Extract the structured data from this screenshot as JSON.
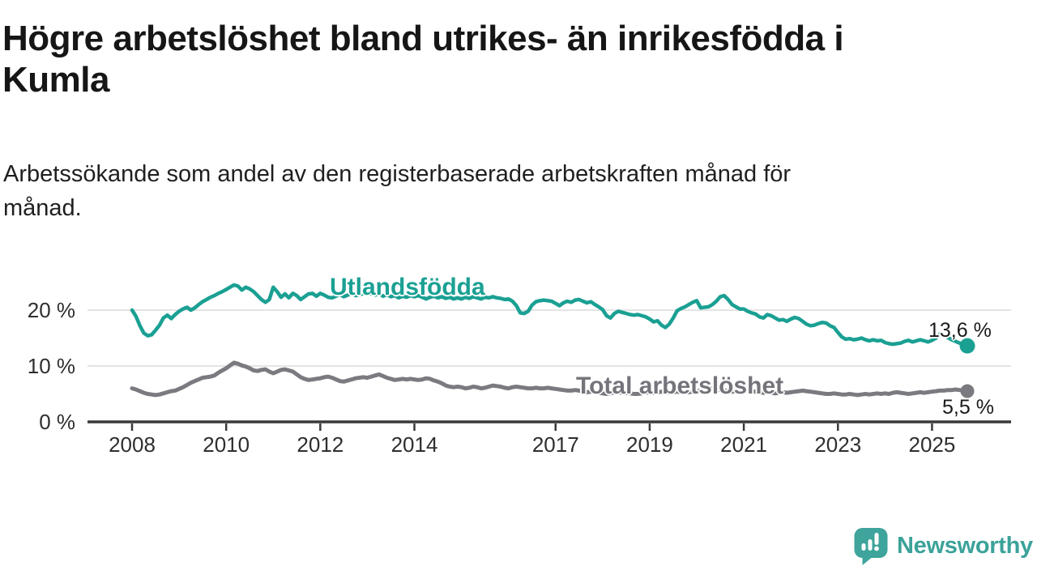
{
  "header": {
    "title_lines": [
      "Högre arbetslöshet bland utrikes- än inrikesfödda i",
      "Kumla"
    ],
    "subtitle_lines": [
      "Arbetssökande som andel av den registerbaserade arbetskraften månad för",
      "månad."
    ]
  },
  "chart_data": {
    "type": "line",
    "title": "Högre arbetslöshet bland utrikes- än inrikesfödda i Kumla",
    "subtitle": "Arbetssökande som andel av den registerbaserade arbetskraften månad för månad.",
    "x_unit": "month",
    "x_start": "2008-01",
    "x_end": "2025-10",
    "ylim": [
      0,
      26
    ],
    "grid": "horizontal",
    "y_ticks": [
      {
        "value": 0,
        "label": "0 %"
      },
      {
        "value": 10,
        "label": "10 %"
      },
      {
        "value": 20,
        "label": "20 %"
      }
    ],
    "x_ticks": [
      {
        "year": 2008,
        "label": "2008"
      },
      {
        "year": 2010,
        "label": "2010"
      },
      {
        "year": 2012,
        "label": "2012"
      },
      {
        "year": 2014,
        "label": "2014"
      },
      {
        "year": 2017,
        "label": "2017"
      },
      {
        "year": 2019,
        "label": "2019"
      },
      {
        "year": 2021,
        "label": "2021"
      },
      {
        "year": 2023,
        "label": "2023"
      },
      {
        "year": 2025,
        "label": "2025"
      }
    ],
    "series": [
      {
        "name": "Utlandsfödda",
        "color": "#1AA093",
        "end_label": "13,6 %",
        "end_value": 13.6,
        "values": [
          20.0,
          18.9,
          17.2,
          15.9,
          15.4,
          15.6,
          16.4,
          17.3,
          18.6,
          19.1,
          18.5,
          19.2,
          19.8,
          20.2,
          20.5,
          20.0,
          20.4,
          21.0,
          21.5,
          21.9,
          22.3,
          22.6,
          23.0,
          23.3,
          23.7,
          24.1,
          24.5,
          24.3,
          23.6,
          24.1,
          23.8,
          23.3,
          22.6,
          21.9,
          21.4,
          21.9,
          24.1,
          23.3,
          22.3,
          22.9,
          22.2,
          23.0,
          22.6,
          21.9,
          22.4,
          22.9,
          23.0,
          22.5,
          23.0,
          22.7,
          22.3,
          22.2,
          22.5,
          22.8,
          22.4,
          22.7,
          23.0,
          22.6,
          22.8,
          23.0,
          23.2,
          22.9,
          22.7,
          23.0,
          22.5,
          22.8,
          22.4,
          22.6,
          22.2,
          22.5,
          22.3,
          22.6,
          22.4,
          22.6,
          22.3,
          22.0,
          22.3,
          22.5,
          22.2,
          22.4,
          22.1,
          22.3,
          22.0,
          22.2,
          22.0,
          22.3,
          22.1,
          22.4,
          22.2,
          22.0,
          22.3,
          22.2,
          22.4,
          22.2,
          22.1,
          21.9,
          22.0,
          21.6,
          20.8,
          19.5,
          19.4,
          19.8,
          20.9,
          21.5,
          21.7,
          21.8,
          21.7,
          21.6,
          21.2,
          20.8,
          21.3,
          21.6,
          21.4,
          21.8,
          21.9,
          21.6,
          21.3,
          21.5,
          21.0,
          20.6,
          20.1,
          19.0,
          18.6,
          19.4,
          19.8,
          19.6,
          19.4,
          19.2,
          19.1,
          19.2,
          19.0,
          18.8,
          18.4,
          17.9,
          18.1,
          17.3,
          16.9,
          17.5,
          18.6,
          19.9,
          20.3,
          20.6,
          21.0,
          21.4,
          21.7,
          20.4,
          20.5,
          20.6,
          21.0,
          21.6,
          22.4,
          22.6,
          21.9,
          21.0,
          20.6,
          20.2,
          20.2,
          19.8,
          19.5,
          19.3,
          18.8,
          18.6,
          19.2,
          19.0,
          18.6,
          18.2,
          18.3,
          18.0,
          18.4,
          18.7,
          18.5,
          18.0,
          17.5,
          17.2,
          17.3,
          17.6,
          17.8,
          17.7,
          17.2,
          16.9,
          16.0,
          15.2,
          14.8,
          14.9,
          14.7,
          14.8,
          15.0,
          14.7,
          14.5,
          14.7,
          14.5,
          14.6,
          14.2,
          14.0,
          13.9,
          14.0,
          14.1,
          14.4,
          14.6,
          14.3,
          14.5,
          14.7,
          14.5,
          14.3,
          14.6,
          15.0,
          15.7,
          15.4,
          15.1,
          14.7,
          14.4,
          14.1,
          13.9,
          13.6
        ]
      },
      {
        "name": "Total arbetslöshet",
        "color": "#7A7A80",
        "end_label": "5,5 %",
        "end_value": 5.5,
        "values": [
          6.0,
          5.8,
          5.5,
          5.2,
          5.0,
          4.9,
          4.8,
          4.9,
          5.1,
          5.3,
          5.5,
          5.6,
          5.9,
          6.2,
          6.6,
          7.0,
          7.3,
          7.6,
          7.9,
          8.0,
          8.1,
          8.3,
          8.8,
          9.2,
          9.6,
          10.1,
          10.6,
          10.4,
          10.1,
          9.9,
          9.6,
          9.2,
          9.1,
          9.3,
          9.4,
          9.0,
          8.7,
          9.0,
          9.3,
          9.4,
          9.2,
          9.0,
          8.5,
          8.0,
          7.7,
          7.5,
          7.6,
          7.7,
          7.8,
          8.0,
          8.1,
          7.9,
          7.6,
          7.3,
          7.2,
          7.4,
          7.6,
          7.8,
          7.9,
          8.0,
          7.9,
          8.1,
          8.3,
          8.5,
          8.2,
          7.9,
          7.7,
          7.5,
          7.6,
          7.7,
          7.6,
          7.7,
          7.6,
          7.5,
          7.6,
          7.8,
          7.7,
          7.4,
          7.2,
          6.9,
          6.5,
          6.3,
          6.2,
          6.3,
          6.2,
          6.0,
          6.1,
          6.3,
          6.2,
          6.0,
          6.1,
          6.3,
          6.5,
          6.4,
          6.3,
          6.1,
          6.0,
          6.2,
          6.3,
          6.2,
          6.1,
          6.0,
          6.0,
          6.1,
          6.0,
          6.0,
          6.1,
          6.0,
          5.9,
          5.8,
          5.7,
          5.6,
          5.6,
          5.7,
          5.6,
          5.4,
          5.3,
          5.4,
          5.3,
          5.2,
          5.1,
          5.0,
          5.1,
          5.3,
          5.2,
          5.3,
          5.2,
          5.1,
          5.0,
          5.0,
          5.1,
          5.2,
          5.3,
          5.2,
          5.3,
          5.4,
          5.3,
          5.2,
          5.3,
          5.4,
          5.3,
          5.2,
          5.3,
          5.4,
          5.5,
          5.6,
          5.8,
          6.0,
          5.9,
          5.8,
          5.7,
          5.6,
          5.5,
          5.4,
          5.5,
          5.6,
          5.7,
          5.6,
          5.5,
          5.4,
          5.3,
          5.2,
          5.3,
          5.2,
          5.1,
          5.2,
          5.3,
          5.2,
          5.3,
          5.4,
          5.5,
          5.6,
          5.5,
          5.4,
          5.3,
          5.2,
          5.1,
          5.0,
          5.0,
          5.1,
          5.0,
          4.9,
          4.9,
          5.0,
          4.9,
          4.8,
          4.9,
          5.0,
          4.9,
          5.0,
          5.1,
          5.0,
          5.1,
          5.0,
          5.2,
          5.3,
          5.2,
          5.1,
          5.0,
          5.1,
          5.2,
          5.3,
          5.2,
          5.3,
          5.4,
          5.5,
          5.6,
          5.6,
          5.7,
          5.7,
          5.8,
          5.7,
          5.6,
          5.5
        ]
      }
    ],
    "legend_position": "inline-labels"
  },
  "branding": {
    "logo_text": "Newsworthy",
    "logo_color": "#3BA299"
  },
  "colors": {
    "background": "#ffffff",
    "title": "#161616",
    "gridline": "#dcdcdc",
    "axis": "#3a3a3a",
    "tick_label": "#2e2e2e",
    "series_teal": "#1AA093",
    "series_gray": "#7A7A80"
  }
}
